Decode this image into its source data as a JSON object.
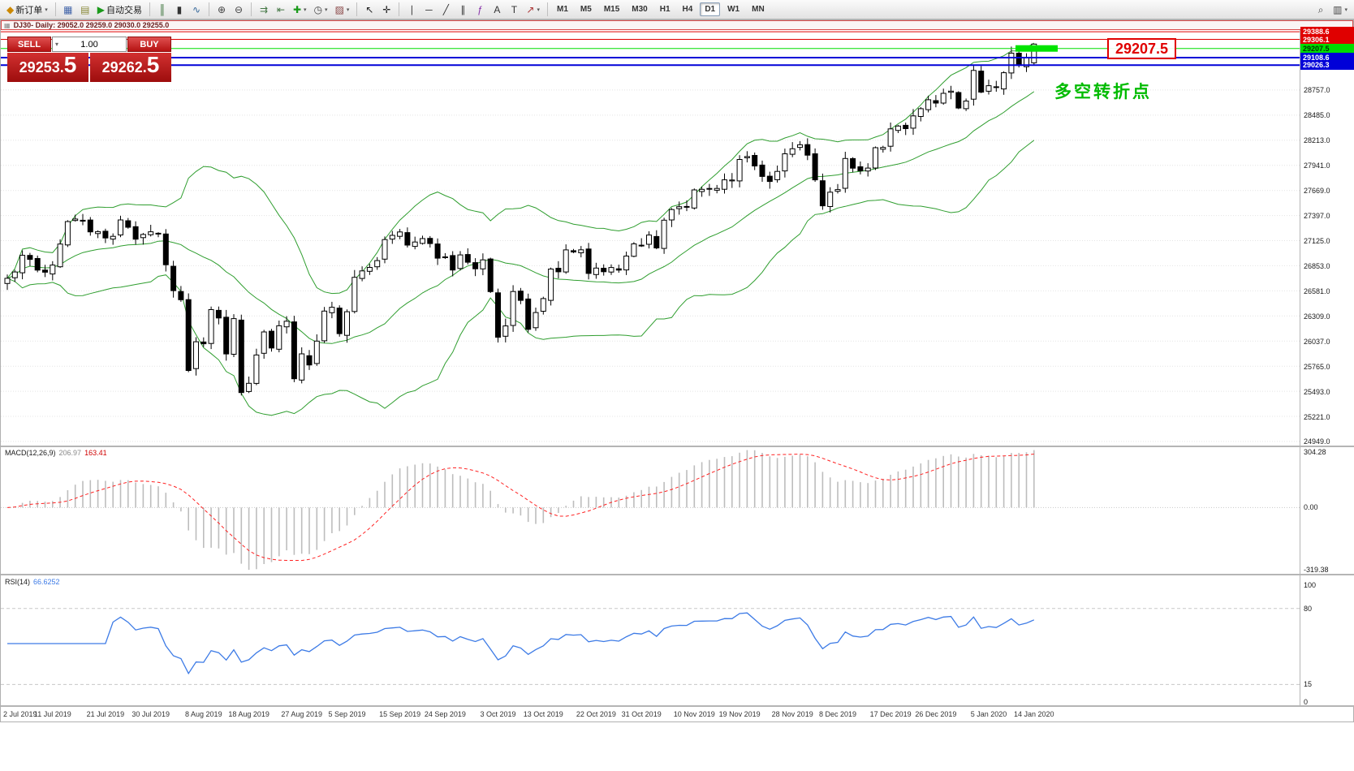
{
  "toolbar": {
    "caret_glyph": "▾",
    "buttons": [
      {
        "name": "new-order",
        "glyph": "◆",
        "glyph_color": "#cc8800",
        "label": "新订单",
        "dropdown": true
      },
      {
        "sep": true
      },
      {
        "name": "tile-windows",
        "glyph": "▦",
        "glyph_color": "#4466aa"
      },
      {
        "name": "profiles",
        "glyph": "▤",
        "glyph_color": "#8a8a3a"
      },
      {
        "name": "autotrading",
        "glyph": "▶",
        "glyph_color": "#1a9a1a",
        "label": "自动交易"
      },
      {
        "sep": true
      },
      {
        "name": "bar-chart",
        "glyph": "║",
        "glyph_color": "#2d6b2d"
      },
      {
        "name": "candlestick-chart",
        "glyph": "▮",
        "glyph_color": "#333333"
      },
      {
        "name": "line-chart",
        "glyph": "∿",
        "glyph_color": "#336699"
      },
      {
        "sep": true
      },
      {
        "name": "zoom-in",
        "glyph": "⊕",
        "glyph_color": "#444444"
      },
      {
        "name": "zoom-out",
        "glyph": "⊖",
        "glyph_color": "#444444"
      },
      {
        "sep": true
      },
      {
        "name": "auto-scroll",
        "glyph": "⇉",
        "glyph_color": "#447744"
      },
      {
        "name": "chart-shift",
        "glyph": "⇤",
        "glyph_color": "#447744"
      },
      {
        "name": "indicators",
        "glyph": "✚",
        "glyph_color": "#1a9a1a",
        "dropdown": true
      },
      {
        "name": "periods",
        "glyph": "◷",
        "glyph_color": "#444444",
        "dropdown": true
      },
      {
        "name": "templates",
        "glyph": "▨",
        "glyph_color": "#884444",
        "dropdown": true
      },
      {
        "sep": true
      },
      {
        "name": "cursor",
        "glyph": "↖",
        "glyph_color": "#222222"
      },
      {
        "name": "crosshair",
        "glyph": "✛",
        "glyph_color": "#222222"
      },
      {
        "sep": true
      },
      {
        "name": "vertical-line",
        "glyph": "∣",
        "glyph_color": "#333333"
      },
      {
        "name": "horizontal-line",
        "glyph": "─",
        "glyph_color": "#333333"
      },
      {
        "name": "trendline",
        "glyph": "╱",
        "glyph_color": "#333333"
      },
      {
        "name": "equidistant-channel",
        "glyph": "∥",
        "glyph_color": "#333333"
      },
      {
        "name": "fibonacci",
        "glyph": "ƒ",
        "glyph_color": "#8833aa"
      },
      {
        "name": "text",
        "glyph": "A",
        "glyph_color": "#333333"
      },
      {
        "name": "text-label",
        "glyph": "T",
        "glyph_color": "#333333"
      },
      {
        "name": "arrow-objects",
        "glyph": "↗",
        "glyph_color": "#aa3333",
        "dropdown": true
      },
      {
        "sep": true
      }
    ],
    "timeframes": [
      "M1",
      "M5",
      "M15",
      "M30",
      "H1",
      "H4",
      "D1",
      "W1",
      "MN"
    ],
    "active_timeframe": "D1",
    "right_buttons": [
      {
        "name": "search",
        "glyph": "⌕",
        "glyph_color": "#444444"
      },
      {
        "name": "new-window",
        "glyph": "▥",
        "glyph_color": "#444444",
        "dropdown": true
      }
    ]
  },
  "chart": {
    "icon": "▦",
    "title": "DJ30- Daily: 29052.0 29259.0 29030.0 29255.0"
  },
  "trade_panel": {
    "sell_label": "SELL",
    "buy_label": "BUY",
    "volume": "1.00",
    "caret": "▾",
    "sell_price_main": "29253.",
    "sell_price_big": "5",
    "buy_price_main": "29262.",
    "buy_price_big": "5"
  },
  "annotations": {
    "price_label": "29207.5",
    "turning_point": "多空转折点"
  },
  "price_axis": {
    "gridlines": [
      "28757.0",
      "28485.0",
      "28213.0",
      "27941.0",
      "27669.0",
      "27397.0",
      "27125.0",
      "26853.0",
      "26581.0",
      "26309.0",
      "26037.0",
      "25765.0",
      "25493.0",
      "25221.0",
      "24949.0"
    ]
  },
  "macd": {
    "name_label": "MACD(12,26,9)",
    "value1": "206.97",
    "value2": "163.41",
    "axis": [
      "304.28",
      "0.00",
      "-319.38"
    ]
  },
  "rsi": {
    "name_label": "RSI(14)",
    "value": "66.6252",
    "axis": [
      "100",
      "80",
      "15",
      "0"
    ],
    "levels": [
      80,
      15
    ]
  },
  "chart_data": {
    "type": "candlestick",
    "symbol": "DJ30-",
    "timeframe": "Daily",
    "last_candle_ohlc": [
      29052.0,
      29259.0,
      29030.0,
      29255.0
    ],
    "visible_price_range": [
      24949.0,
      29388.6
    ],
    "gridline_step": 272.0,
    "closes": [
      26717,
      26786,
      26966,
      26922,
      26806,
      26783,
      26860,
      27088,
      27332,
      27359,
      27336,
      27220,
      27223,
      27154,
      27172,
      27349,
      27270,
      27141,
      27192,
      27221,
      27198,
      26864,
      26583,
      26485,
      25718,
      26029,
      26007,
      26378,
      26287,
      25897,
      26280,
      25479,
      25579,
      25886,
      26136,
      25962,
      26203,
      26252,
      25629,
      25898,
      25778,
      26036,
      26362,
      26403,
      26118,
      26355,
      26728,
      26797,
      26835,
      26909,
      27137,
      27182,
      27219,
      27076,
      27110,
      27147,
      27094,
      26935,
      26949,
      26807,
      26970,
      26891,
      26820,
      26917,
      26573,
      26079,
      26201,
      26574,
      26478,
      26164,
      26346,
      26497,
      26817,
      26787,
      27025,
      27002,
      27026,
      26770,
      26828,
      26788,
      26834,
      26806,
      26958,
      27090,
      27071,
      27186,
      27046,
      27347,
      27462,
      27493,
      27492,
      27675,
      27681,
      27691,
      27691,
      27784,
      27782,
      28005,
      28036,
      27934,
      27821,
      27766,
      27875,
      28066,
      28121,
      28164,
      28051,
      27783,
      27503,
      27650,
      27678,
      28015,
      27910,
      27882,
      27911,
      28132,
      28135,
      28336,
      28367,
      28339,
      28477,
      28555,
      28652,
      28616,
      28721,
      28745,
      28562,
      28638,
      28969,
      28735,
      28804,
      28784,
      28945,
      29157,
      29024,
      29107,
      29255
    ],
    "x_axis_dates": [
      "2 Jul 2019",
      "11 Jul 2019",
      "21 Jul 2019",
      "30 Jul 2019",
      "8 Aug 2019",
      "18 Aug 2019",
      "27 Aug 2019",
      "5 Sep 2019",
      "15 Sep 2019",
      "24 Sep 2019",
      "3 Oct 2019",
      "13 Oct 2019",
      "22 Oct 2019",
      "31 Oct 2019",
      "10 Nov 2019",
      "19 Nov 2019",
      "28 Nov 2019",
      "8 Dec 2019",
      "17 Dec 2019",
      "26 Dec 2019",
      "5 Jan 2020",
      "14 Jan 2020"
    ],
    "overlays": {
      "bollinger_bands": {
        "period": 20,
        "deviation": 2,
        "color": "#2f9e2f"
      }
    },
    "horizontal_lines": [
      {
        "price": 29388.6,
        "label": "29388.6",
        "color": "#e00000",
        "text_color": "#ffffff",
        "width": 1
      },
      {
        "price": 29306.1,
        "label": "29306.1",
        "color": "#e00000",
        "text_color": "#ffffff",
        "width": 1
      },
      {
        "price": 29207.5,
        "label": "29207.5",
        "color": "#00dd00",
        "text_color": "#003300",
        "width": 1,
        "highlight_segment": true
      },
      {
        "price": 29108.6,
        "label": "29108.6",
        "color": "#0000d8",
        "text_color": "#ffffff",
        "width": 2
      },
      {
        "price": 29026.3,
        "label": "29026.3",
        "color": "#0000d8",
        "text_color": "#ffffff",
        "width": 2
      }
    ],
    "indicators": [
      {
        "name": "MACD",
        "params": [
          12,
          26,
          9
        ],
        "current_values": [
          206.97,
          163.41
        ],
        "axis_range": [
          -319.38,
          304.28
        ]
      },
      {
        "name": "RSI",
        "params": [
          14
        ],
        "current_value": 66.6252,
        "axis_range": [
          0,
          100
        ],
        "levels": [
          80,
          15
        ]
      }
    ]
  }
}
